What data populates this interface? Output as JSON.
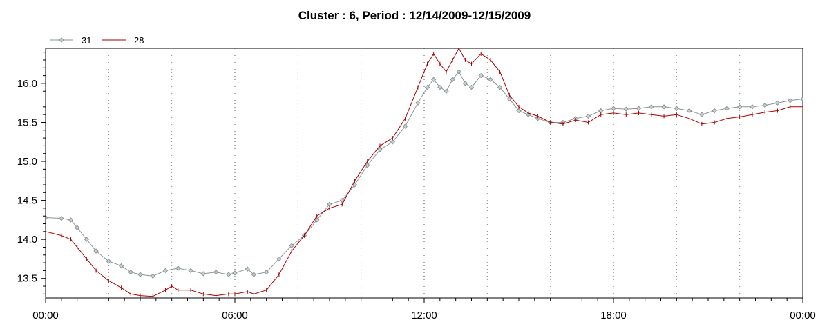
{
  "chart_data": {
    "type": "line",
    "title": "Cluster : 6, Period : 12/14/2009-12/15/2009",
    "xlabel": "",
    "ylabel": "",
    "x_unit": "hours",
    "xlim": [
      0,
      24
    ],
    "ylim": [
      13.25,
      16.45
    ],
    "x_ticks": [
      0,
      6,
      12,
      18,
      24
    ],
    "x_tick_labels": [
      "00:00",
      "06:00",
      "12:00",
      "18:00",
      "00:00"
    ],
    "y_ticks": [
      13.5,
      14.0,
      14.5,
      15.0,
      15.5,
      16.0
    ],
    "y_tick_labels": [
      "13.5",
      "14.0",
      "14.5",
      "15.0",
      "15.5",
      "16.0"
    ],
    "grid": "vertical dotted lines",
    "legend_position": "top-left",
    "series": [
      {
        "name": "31",
        "color": "#8a9496",
        "marker": "diamond",
        "points": [
          [
            0,
            14.28
          ],
          [
            0.5,
            14.27
          ],
          [
            0.8,
            14.25
          ],
          [
            1.0,
            14.15
          ],
          [
            1.3,
            14.0
          ],
          [
            1.6,
            13.85
          ],
          [
            2.0,
            13.72
          ],
          [
            2.4,
            13.66
          ],
          [
            2.7,
            13.58
          ],
          [
            3.0,
            13.55
          ],
          [
            3.4,
            13.53
          ],
          [
            3.8,
            13.6
          ],
          [
            4.2,
            13.63
          ],
          [
            4.6,
            13.6
          ],
          [
            5.0,
            13.56
          ],
          [
            5.4,
            13.58
          ],
          [
            5.8,
            13.55
          ],
          [
            6.0,
            13.57
          ],
          [
            6.4,
            13.62
          ],
          [
            6.6,
            13.55
          ],
          [
            7.0,
            13.58
          ],
          [
            7.4,
            13.75
          ],
          [
            7.8,
            13.92
          ],
          [
            8.2,
            14.05
          ],
          [
            8.6,
            14.25
          ],
          [
            9.0,
            14.45
          ],
          [
            9.4,
            14.5
          ],
          [
            9.8,
            14.7
          ],
          [
            10.2,
            14.95
          ],
          [
            10.6,
            15.15
          ],
          [
            11.0,
            15.25
          ],
          [
            11.4,
            15.45
          ],
          [
            11.8,
            15.75
          ],
          [
            12.1,
            15.95
          ],
          [
            12.3,
            16.05
          ],
          [
            12.5,
            15.95
          ],
          [
            12.7,
            15.9
          ],
          [
            12.9,
            16.05
          ],
          [
            13.1,
            16.15
          ],
          [
            13.3,
            16.0
          ],
          [
            13.5,
            15.95
          ],
          [
            13.8,
            16.1
          ],
          [
            14.1,
            16.05
          ],
          [
            14.4,
            15.95
          ],
          [
            14.7,
            15.8
          ],
          [
            15.0,
            15.65
          ],
          [
            15.3,
            15.6
          ],
          [
            15.6,
            15.55
          ],
          [
            16.0,
            15.5
          ],
          [
            16.4,
            15.5
          ],
          [
            16.8,
            15.55
          ],
          [
            17.2,
            15.58
          ],
          [
            17.6,
            15.65
          ],
          [
            18.0,
            15.68
          ],
          [
            18.4,
            15.67
          ],
          [
            18.8,
            15.68
          ],
          [
            19.2,
            15.7
          ],
          [
            19.6,
            15.7
          ],
          [
            20.0,
            15.68
          ],
          [
            20.4,
            15.65
          ],
          [
            20.8,
            15.6
          ],
          [
            21.2,
            15.65
          ],
          [
            21.6,
            15.68
          ],
          [
            22.0,
            15.7
          ],
          [
            22.4,
            15.7
          ],
          [
            22.8,
            15.72
          ],
          [
            23.2,
            15.75
          ],
          [
            23.6,
            15.78
          ],
          [
            24.0,
            15.8
          ]
        ]
      },
      {
        "name": "28",
        "color": "#a80000",
        "marker": "tick",
        "points": [
          [
            0,
            14.1
          ],
          [
            0.5,
            14.05
          ],
          [
            0.8,
            14.0
          ],
          [
            1.0,
            13.9
          ],
          [
            1.3,
            13.75
          ],
          [
            1.6,
            13.6
          ],
          [
            2.0,
            13.47
          ],
          [
            2.4,
            13.38
          ],
          [
            2.7,
            13.3
          ],
          [
            3.0,
            13.28
          ],
          [
            3.4,
            13.27
          ],
          [
            3.8,
            13.35
          ],
          [
            4.0,
            13.4
          ],
          [
            4.2,
            13.35
          ],
          [
            4.6,
            13.35
          ],
          [
            5.0,
            13.3
          ],
          [
            5.4,
            13.28
          ],
          [
            5.8,
            13.3
          ],
          [
            6.0,
            13.3
          ],
          [
            6.4,
            13.33
          ],
          [
            6.6,
            13.3
          ],
          [
            7.0,
            13.35
          ],
          [
            7.4,
            13.55
          ],
          [
            7.8,
            13.85
          ],
          [
            8.2,
            14.05
          ],
          [
            8.6,
            14.3
          ],
          [
            9.0,
            14.4
          ],
          [
            9.4,
            14.45
          ],
          [
            9.8,
            14.75
          ],
          [
            10.2,
            15.0
          ],
          [
            10.6,
            15.2
          ],
          [
            11.0,
            15.3
          ],
          [
            11.4,
            15.55
          ],
          [
            11.8,
            15.95
          ],
          [
            12.1,
            16.25
          ],
          [
            12.3,
            16.38
          ],
          [
            12.5,
            16.25
          ],
          [
            12.7,
            16.15
          ],
          [
            12.9,
            16.3
          ],
          [
            13.1,
            16.45
          ],
          [
            13.3,
            16.3
          ],
          [
            13.5,
            16.25
          ],
          [
            13.8,
            16.38
          ],
          [
            14.1,
            16.3
          ],
          [
            14.4,
            16.15
          ],
          [
            14.7,
            15.85
          ],
          [
            15.0,
            15.7
          ],
          [
            15.3,
            15.62
          ],
          [
            15.6,
            15.58
          ],
          [
            16.0,
            15.5
          ],
          [
            16.4,
            15.48
          ],
          [
            16.8,
            15.53
          ],
          [
            17.2,
            15.5
          ],
          [
            17.6,
            15.6
          ],
          [
            18.0,
            15.62
          ],
          [
            18.4,
            15.6
          ],
          [
            18.8,
            15.62
          ],
          [
            19.2,
            15.6
          ],
          [
            19.6,
            15.58
          ],
          [
            20.0,
            15.6
          ],
          [
            20.4,
            15.55
          ],
          [
            20.8,
            15.48
          ],
          [
            21.2,
            15.5
          ],
          [
            21.6,
            15.55
          ],
          [
            22.0,
            15.57
          ],
          [
            22.4,
            15.6
          ],
          [
            22.8,
            15.63
          ],
          [
            23.2,
            15.65
          ],
          [
            23.6,
            15.7
          ],
          [
            24.0,
            15.7
          ]
        ]
      }
    ]
  }
}
